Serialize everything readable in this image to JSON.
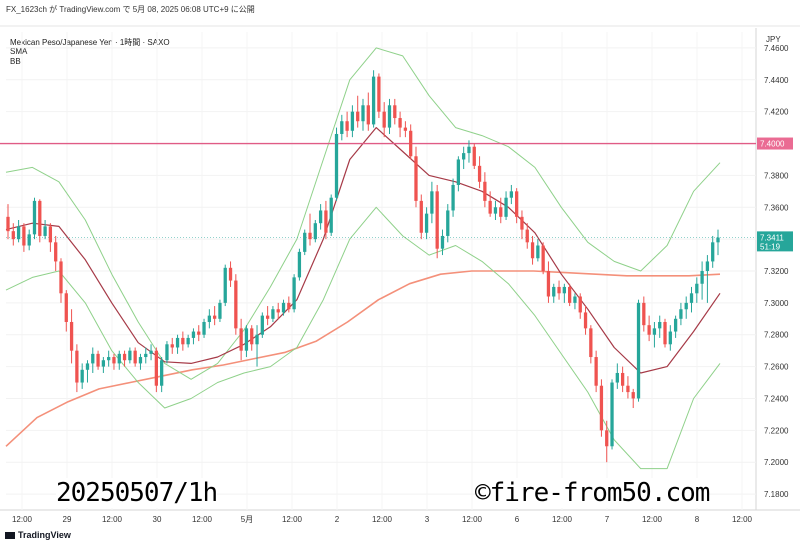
{
  "header": {
    "caption": "FX_1623ch が TradingView.com で 5月 08, 2025 06:08 UTC+9 に公開"
  },
  "legend": {
    "symbol": "Mexican Peso/Japanese Yen · 1時間 · SAXO",
    "sma": "SMA",
    "bb": "BB"
  },
  "footer": {
    "brand": "TradingView"
  },
  "overlay": {
    "date_stamp": "20250507/1h",
    "watermark": "©fire-from50.com"
  },
  "colors": {
    "up": "#26a69a",
    "down": "#ef5350",
    "bb_band": "#8fd18a",
    "bb_basis": "#a63a47",
    "sma": "#f4907a",
    "hline": "#e05c86",
    "price_tag": "#26a69a",
    "level_tag": "#ea6b93"
  },
  "chart_data": {
    "type": "candlestick",
    "title": "Mexican Peso/Japanese Yen · 1時間 · SAXO",
    "currency": "JPY",
    "ylim": [
      7.17,
      7.47
    ],
    "y_ticks": [
      "7.4600",
      "7.4400",
      "7.4200",
      "7.4000",
      "7.3800",
      "7.3600",
      "7.3400",
      "7.3200",
      "7.3000",
      "7.2800",
      "7.2600",
      "7.2400",
      "7.2200",
      "7.2000",
      "7.1800"
    ],
    "x_ticks": [
      "12:00",
      "29",
      "12:00",
      "30",
      "12:00",
      "5月",
      "12:00",
      "2",
      "12:00",
      "3",
      "12:00",
      "6",
      "12:00",
      "7",
      "12:00",
      "8",
      "12:00"
    ],
    "last_price": "7.3411",
    "countdown": "51:19",
    "horizontal_line": {
      "value": "7.4000"
    },
    "bb_upper": [
      7.382,
      7.385,
      7.376,
      7.352,
      7.318,
      7.288,
      7.262,
      7.252,
      7.262,
      7.283,
      7.31,
      7.34,
      7.39,
      7.44,
      7.46,
      7.455,
      7.43,
      7.41,
      7.405,
      7.398,
      7.385,
      7.36,
      7.338,
      7.326,
      7.32,
      7.336,
      7.37,
      7.388
    ],
    "bb_basis": [
      7.346,
      7.35,
      7.348,
      7.327,
      7.3,
      7.275,
      7.263,
      7.262,
      7.266,
      7.274,
      7.285,
      7.302,
      7.34,
      7.39,
      7.41,
      7.395,
      7.38,
      7.376,
      7.37,
      7.36,
      7.344,
      7.318,
      7.296,
      7.272,
      7.256,
      7.26,
      7.282,
      7.306
    ],
    "bb_lower": [
      7.308,
      7.316,
      7.32,
      7.3,
      7.27,
      7.25,
      7.234,
      7.24,
      7.25,
      7.256,
      7.26,
      7.272,
      7.302,
      7.34,
      7.36,
      7.342,
      7.33,
      7.336,
      7.326,
      7.312,
      7.292,
      7.268,
      7.244,
      7.214,
      7.196,
      7.196,
      7.24,
      7.262
    ],
    "sma": [
      7.21,
      7.228,
      7.238,
      7.246,
      7.25,
      7.254,
      7.258,
      7.261,
      7.265,
      7.269,
      7.276,
      7.288,
      7.302,
      7.312,
      7.318,
      7.32,
      7.32,
      7.32,
      7.319,
      7.318,
      7.317,
      7.317,
      7.317,
      7.318
    ],
    "ohlc": [
      [
        7.354,
        7.362,
        7.34,
        7.345
      ],
      [
        7.345,
        7.35,
        7.336,
        7.34
      ],
      [
        7.34,
        7.352,
        7.338,
        7.348
      ],
      [
        7.348,
        7.35,
        7.332,
        7.336
      ],
      [
        7.336,
        7.346,
        7.333,
        7.343
      ],
      [
        7.343,
        7.366,
        7.34,
        7.364
      ],
      [
        7.364,
        7.365,
        7.338,
        7.342
      ],
      [
        7.342,
        7.352,
        7.34,
        7.348
      ],
      [
        7.348,
        7.35,
        7.332,
        7.338
      ],
      [
        7.338,
        7.342,
        7.32,
        7.326
      ],
      [
        7.326,
        7.328,
        7.3,
        7.306
      ],
      [
        7.306,
        7.308,
        7.282,
        7.288
      ],
      [
        7.288,
        7.296,
        7.262,
        7.27
      ],
      [
        7.27,
        7.274,
        7.244,
        7.25
      ],
      [
        7.25,
        7.262,
        7.246,
        7.258
      ],
      [
        7.258,
        7.264,
        7.25,
        7.262
      ],
      [
        7.262,
        7.272,
        7.256,
        7.268
      ],
      [
        7.268,
        7.27,
        7.258,
        7.26
      ],
      [
        7.26,
        7.266,
        7.256,
        7.264
      ],
      [
        7.264,
        7.27,
        7.26,
        7.266
      ],
      [
        7.266,
        7.268,
        7.258,
        7.262
      ],
      [
        7.262,
        7.27,
        7.258,
        7.268
      ],
      [
        7.268,
        7.27,
        7.26,
        7.264
      ],
      [
        7.264,
        7.272,
        7.262,
        7.27
      ],
      [
        7.27,
        7.272,
        7.26,
        7.262
      ],
      [
        7.262,
        7.268,
        7.258,
        7.266
      ],
      [
        7.266,
        7.272,
        7.262,
        7.268
      ],
      [
        7.268,
        7.274,
        7.264,
        7.27
      ],
      [
        7.27,
        7.272,
        7.244,
        7.248
      ],
      [
        7.248,
        7.266,
        7.244,
        7.264
      ],
      [
        7.264,
        7.276,
        7.262,
        7.274
      ],
      [
        7.274,
        7.278,
        7.268,
        7.272
      ],
      [
        7.272,
        7.28,
        7.268,
        7.278
      ],
      [
        7.278,
        7.282,
        7.27,
        7.274
      ],
      [
        7.274,
        7.28,
        7.272,
        7.278
      ],
      [
        7.278,
        7.284,
        7.274,
        7.282
      ],
      [
        7.282,
        7.286,
        7.276,
        7.28
      ],
      [
        7.28,
        7.29,
        7.278,
        7.288
      ],
      [
        7.288,
        7.296,
        7.284,
        7.292
      ],
      [
        7.292,
        7.298,
        7.286,
        7.29
      ],
      [
        7.29,
        7.302,
        7.288,
        7.3
      ],
      [
        7.3,
        7.324,
        7.298,
        7.322
      ],
      [
        7.322,
        7.326,
        7.31,
        7.314
      ],
      [
        7.314,
        7.318,
        7.28,
        7.284
      ],
      [
        7.284,
        7.29,
        7.264,
        7.27
      ],
      [
        7.27,
        7.286,
        7.266,
        7.284
      ],
      [
        7.284,
        7.286,
        7.27,
        7.274
      ],
      [
        7.274,
        7.286,
        7.26,
        7.28
      ],
      [
        7.28,
        7.294,
        7.278,
        7.292
      ],
      [
        7.292,
        7.298,
        7.286,
        7.29
      ],
      [
        7.29,
        7.298,
        7.288,
        7.296
      ],
      [
        7.296,
        7.3,
        7.29,
        7.294
      ],
      [
        7.294,
        7.302,
        7.292,
        7.3
      ],
      [
        7.3,
        7.304,
        7.294,
        7.296
      ],
      [
        7.296,
        7.318,
        7.294,
        7.316
      ],
      [
        7.316,
        7.334,
        7.314,
        7.332
      ],
      [
        7.332,
        7.346,
        7.33,
        7.344
      ],
      [
        7.344,
        7.356,
        7.336,
        7.34
      ],
      [
        7.34,
        7.352,
        7.338,
        7.35
      ],
      [
        7.35,
        7.362,
        7.346,
        7.358
      ],
      [
        7.358,
        7.364,
        7.34,
        7.344
      ],
      [
        7.344,
        7.368,
        7.342,
        7.366
      ],
      [
        7.366,
        7.41,
        7.364,
        7.406
      ],
      [
        7.406,
        7.418,
        7.402,
        7.414
      ],
      [
        7.414,
        7.42,
        7.404,
        7.408
      ],
      [
        7.408,
        7.424,
        7.404,
        7.42
      ],
      [
        7.42,
        7.43,
        7.41,
        7.414
      ],
      [
        7.414,
        7.428,
        7.408,
        7.424
      ],
      [
        7.424,
        7.432,
        7.408,
        7.412
      ],
      [
        7.412,
        7.446,
        7.41,
        7.442
      ],
      [
        7.442,
        7.444,
        7.416,
        7.42
      ],
      [
        7.42,
        7.426,
        7.404,
        7.41
      ],
      [
        7.41,
        7.428,
        7.406,
        7.424
      ],
      [
        7.424,
        7.428,
        7.412,
        7.416
      ],
      [
        7.416,
        7.42,
        7.404,
        7.41
      ],
      [
        7.41,
        7.414,
        7.404,
        7.408
      ],
      [
        7.408,
        7.412,
        7.39,
        7.392
      ],
      [
        7.392,
        7.398,
        7.36,
        7.364
      ],
      [
        7.364,
        7.368,
        7.34,
        7.344
      ],
      [
        7.344,
        7.36,
        7.34,
        7.356
      ],
      [
        7.356,
        7.376,
        7.35,
        7.37
      ],
      [
        7.37,
        7.374,
        7.328,
        7.334
      ],
      [
        7.334,
        7.346,
        7.33,
        7.342
      ],
      [
        7.342,
        7.362,
        7.338,
        7.358
      ],
      [
        7.358,
        7.378,
        7.354,
        7.374
      ],
      [
        7.374,
        7.392,
        7.37,
        7.39
      ],
      [
        7.39,
        7.398,
        7.384,
        7.394
      ],
      [
        7.394,
        7.402,
        7.388,
        7.398
      ],
      [
        7.398,
        7.4,
        7.384,
        7.386
      ],
      [
        7.386,
        7.392,
        7.372,
        7.376
      ],
      [
        7.376,
        7.382,
        7.36,
        7.364
      ],
      [
        7.364,
        7.37,
        7.354,
        7.356
      ],
      [
        7.356,
        7.364,
        7.352,
        7.36
      ],
      [
        7.36,
        7.366,
        7.35,
        7.354
      ],
      [
        7.354,
        7.37,
        7.352,
        7.366
      ],
      [
        7.366,
        7.374,
        7.362,
        7.37
      ],
      [
        7.37,
        7.372,
        7.35,
        7.354
      ],
      [
        7.354,
        7.358,
        7.34,
        7.346
      ],
      [
        7.346,
        7.35,
        7.334,
        7.338
      ],
      [
        7.338,
        7.342,
        7.324,
        7.328
      ],
      [
        7.328,
        7.34,
        7.326,
        7.336
      ],
      [
        7.336,
        7.338,
        7.318,
        7.32
      ],
      [
        7.32,
        7.326,
        7.3,
        7.304
      ],
      [
        7.304,
        7.312,
        7.3,
        7.31
      ],
      [
        7.31,
        7.314,
        7.302,
        7.306
      ],
      [
        7.306,
        7.312,
        7.3,
        7.31
      ],
      [
        7.31,
        7.312,
        7.298,
        7.3
      ],
      [
        7.3,
        7.306,
        7.296,
        7.304
      ],
      [
        7.304,
        7.306,
        7.29,
        7.294
      ],
      [
        7.294,
        7.298,
        7.28,
        7.284
      ],
      [
        7.284,
        7.286,
        7.262,
        7.266
      ],
      [
        7.266,
        7.27,
        7.244,
        7.248
      ],
      [
        7.248,
        7.252,
        7.216,
        7.22
      ],
      [
        7.22,
        7.226,
        7.2,
        7.21
      ],
      [
        7.21,
        7.252,
        7.208,
        7.25
      ],
      [
        7.25,
        7.262,
        7.246,
        7.256
      ],
      [
        7.256,
        7.26,
        7.244,
        7.248
      ],
      [
        7.248,
        7.254,
        7.24,
        7.244
      ],
      [
        7.244,
        7.246,
        7.234,
        7.24
      ],
      [
        7.24,
        7.302,
        7.238,
        7.3
      ],
      [
        7.3,
        7.304,
        7.282,
        7.286
      ],
      [
        7.286,
        7.292,
        7.276,
        7.28
      ],
      [
        7.28,
        7.288,
        7.272,
        7.284
      ],
      [
        7.284,
        7.292,
        7.278,
        7.288
      ],
      [
        7.288,
        7.29,
        7.272,
        7.274
      ],
      [
        7.274,
        7.286,
        7.27,
        7.282
      ],
      [
        7.282,
        7.292,
        7.278,
        7.29
      ],
      [
        7.29,
        7.3,
        7.286,
        7.296
      ],
      [
        7.296,
        7.304,
        7.29,
        7.3
      ],
      [
        7.3,
        7.31,
        7.294,
        7.306
      ],
      [
        7.306,
        7.316,
        7.3,
        7.312
      ],
      [
        7.312,
        7.326,
        7.302,
        7.32
      ],
      [
        7.32,
        7.33,
        7.3,
        7.326
      ],
      [
        7.326,
        7.342,
        7.322,
        7.338
      ],
      [
        7.338,
        7.346,
        7.33,
        7.341
      ]
    ]
  }
}
